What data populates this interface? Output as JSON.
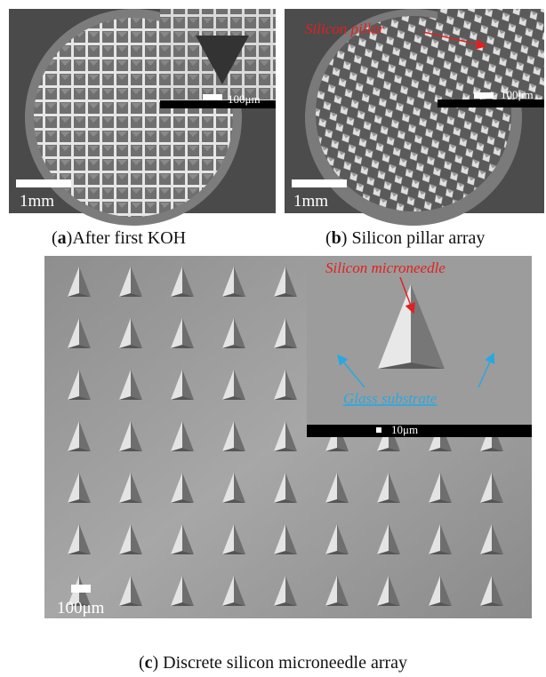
{
  "panels": [
    {
      "label": "a",
      "scale_bar": "1mm",
      "inset_scale_bar": "100μm",
      "caption": {
        "open": "(",
        "label": "a",
        "text": ")After first KOH"
      }
    },
    {
      "label": "b",
      "scale_bar": "1mm",
      "inset_scale_bar": "100μm",
      "annotation": "Silicon pillar",
      "caption": {
        "open": "(",
        "label": "b",
        "text": ") Silicon pillar array"
      }
    },
    {
      "label": "c",
      "scale_bar": "100μm",
      "inset_scale_bar": "10μm",
      "annotations": [
        "Silicon microneedle",
        "Glass substrate"
      ],
      "caption": {
        "open": "(",
        "label": "c",
        "text": ") Discrete silicon microneedle array"
      }
    }
  ]
}
